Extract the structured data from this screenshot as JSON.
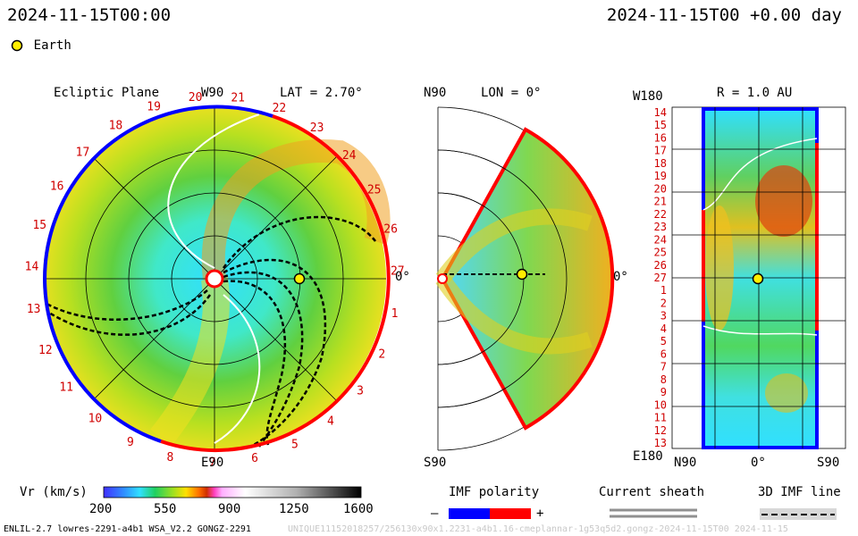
{
  "header": {
    "left_time": "2024-11-15T00:00",
    "right_time": "2024-11-15T00 +0.00 day"
  },
  "legend": {
    "earth_label": "Earth"
  },
  "ecliptic": {
    "title": "Ecliptic Plane",
    "top_label": "W90",
    "bottom_label": "E90",
    "right_label": "0°",
    "lat_label": "LAT = 2.70°",
    "sectors": [
      "20",
      "21",
      "22",
      "23",
      "24",
      "25",
      "26",
      "27",
      "1",
      "2",
      "3",
      "4",
      "5",
      "6",
      "7",
      "8",
      "9",
      "10",
      "11",
      "12",
      "13",
      "14",
      "15",
      "16",
      "17",
      "18",
      "19"
    ]
  },
  "meridional": {
    "top_label": "N90",
    "bottom_label": "S90",
    "right_label": "0°",
    "lon_label": "LON = 0°"
  },
  "radial": {
    "top_left_label": "W180",
    "bottom_left_label": "E180",
    "r_label": "R = 1.0 AU",
    "x_labels": [
      "N90",
      "0°",
      "S90"
    ],
    "sectors": [
      "14",
      "15",
      "16",
      "17",
      "18",
      "19",
      "20",
      "21",
      "22",
      "23",
      "24",
      "25",
      "26",
      "27",
      "1",
      "2",
      "3",
      "4",
      "5",
      "6",
      "7",
      "8",
      "9",
      "10",
      "11",
      "12",
      "13"
    ]
  },
  "colorbar": {
    "label": "Vr (km/s)",
    "ticks": [
      "200",
      "550",
      "900",
      "1250",
      "1600"
    ]
  },
  "imf": {
    "label": "IMF polarity",
    "minus": "–",
    "plus": "+",
    "neg_color": "#0000ff",
    "pos_color": "#ff0000"
  },
  "sheath": {
    "label": "Current sheath"
  },
  "imf3d": {
    "label": "3D IMF line"
  },
  "footer": {
    "left": "ENLIL-2.7 lowres-2291-a4b1 WSA_V2.2 GONGZ-2291",
    "right": "UNIQUE11152018257/256130x90x1.2231-a4b1.16-cmeplannar-1g53q5d2.gongz-2024-11-15T00 2024-11-15"
  }
}
